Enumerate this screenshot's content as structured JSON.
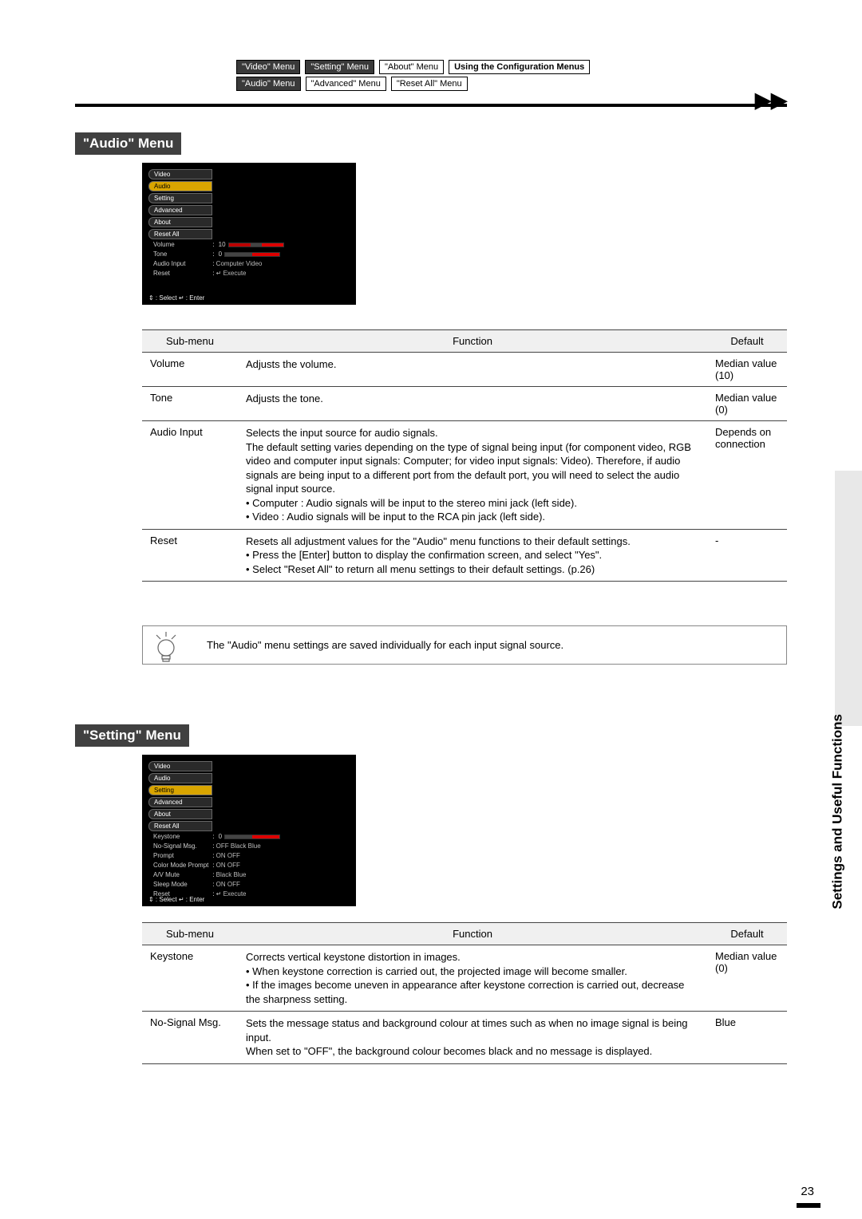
{
  "nav_row1": {
    "video": "\"Video\" Menu",
    "setting": "\"Setting\" Menu",
    "about": "\"About\" Menu",
    "config": "Using the Configuration Menus"
  },
  "nav_row2": {
    "audio": "\"Audio\" Menu",
    "advanced": "\"Advanced\" Menu",
    "resetall": "\"Reset All\" Menu"
  },
  "section_audio": "\"Audio\" Menu",
  "section_setting": "\"Setting\" Menu",
  "menu_tabs": [
    "Video",
    "Audio",
    "Setting",
    "Advanced",
    "About",
    "Reset All"
  ],
  "audio_menu_screenshot": {
    "rows": [
      {
        "label": "Volume",
        "value": "10",
        "slider": true
      },
      {
        "label": "Tone",
        "value": "0",
        "slider": true,
        "short": true
      },
      {
        "label": "Audio Input",
        "value": "Computer  Video"
      },
      {
        "label": "Reset",
        "value": "↵ Execute"
      }
    ],
    "footer": "⇕ : Select   ↵ : Enter"
  },
  "setting_menu_screenshot": {
    "rows": [
      {
        "label": "Keystone",
        "value": "0",
        "slider": true,
        "short": true
      },
      {
        "label": "No-Signal Msg.",
        "value": "OFF  Black  Blue"
      },
      {
        "label": "Prompt",
        "value": "ON  OFF"
      },
      {
        "label": "Color Mode Prompt",
        "value": "ON  OFF"
      },
      {
        "label": "A/V Mute",
        "value": "Black  Blue"
      },
      {
        "label": "Sleep Mode",
        "value": "ON  OFF"
      },
      {
        "label": "Reset",
        "value": "↵ Execute"
      }
    ],
    "footer": "⇕ : Select   ↵ : Enter"
  },
  "table_headers": {
    "sub": "Sub-menu",
    "func": "Function",
    "def": "Default"
  },
  "audio_table": [
    {
      "sub": "Volume",
      "func": "Adjusts the volume.",
      "def": "Median value (10)"
    },
    {
      "sub": "Tone",
      "func": "Adjusts the tone.",
      "def": "Median value (0)"
    },
    {
      "sub": "Audio Input",
      "func": "Selects the input source for audio signals.\nThe default setting varies depending on the type of signal being input (for component video, RGB video and computer input signals: Computer; for video input signals: Video). Therefore, if audio signals are being input to a different port from the default port, you will need to select the audio signal input source.\n• Computer : Audio signals will be input to the stereo mini jack (left side).\n• Video         : Audio signals will be input to the RCA pin jack (left side).",
      "def": "Depends on connection"
    },
    {
      "sub": "Reset",
      "func": "Resets all adjustment values for the \"Audio\" menu functions to their default settings.\n• Press the [Enter] button to display the confirmation screen, and select \"Yes\".\n• Select \"Reset All\" to return all menu settings to their default settings. (p.26)",
      "def": "-"
    }
  ],
  "tip_text": "The \"Audio\" menu settings are saved individually for each input signal source.",
  "setting_table": [
    {
      "sub": "Keystone",
      "func": "Corrects vertical keystone distortion in images.\n• When keystone correction is carried out, the projected image will become smaller.\n• If the images become uneven in appearance after keystone correction is carried out, decrease the sharpness setting.",
      "def": "Median value (0)"
    },
    {
      "sub": "No-Signal Msg.",
      "func": "Sets the message status and background colour at times such as when no image signal is being input.\nWhen set to \"OFF\", the background colour becomes black and no message is displayed.",
      "def": "Blue"
    }
  ],
  "side_label": "Settings and Useful Functions",
  "page_number": "23"
}
